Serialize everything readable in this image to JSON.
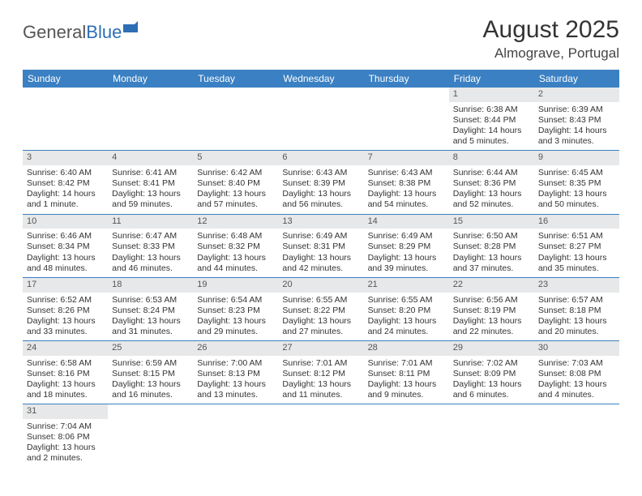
{
  "brand": {
    "part1": "General",
    "part2": "Blue"
  },
  "title": "August 2025",
  "location": "Almograve, Portugal",
  "colors": {
    "header_bg": "#3a80c3",
    "header_text": "#ffffff",
    "daynum_bg": "#e7e8e9",
    "border": "#3a80c3",
    "brand_blue": "#2d6fb5",
    "page_bg": "#ffffff",
    "text": "#333333"
  },
  "fonts": {
    "title_size_pt": 22,
    "location_size_pt": 13,
    "header_size_pt": 9,
    "body_size_pt": 8
  },
  "layout": {
    "columns": 7,
    "rows": 6
  },
  "weekdays": [
    "Sunday",
    "Monday",
    "Tuesday",
    "Wednesday",
    "Thursday",
    "Friday",
    "Saturday"
  ],
  "weeks": [
    [
      null,
      null,
      null,
      null,
      null,
      {
        "n": "1",
        "sr": "Sunrise: 6:38 AM",
        "ss": "Sunset: 8:44 PM",
        "dl1": "Daylight: 14 hours",
        "dl2": "and 5 minutes."
      },
      {
        "n": "2",
        "sr": "Sunrise: 6:39 AM",
        "ss": "Sunset: 8:43 PM",
        "dl1": "Daylight: 14 hours",
        "dl2": "and 3 minutes."
      }
    ],
    [
      {
        "n": "3",
        "sr": "Sunrise: 6:40 AM",
        "ss": "Sunset: 8:42 PM",
        "dl1": "Daylight: 14 hours",
        "dl2": "and 1 minute."
      },
      {
        "n": "4",
        "sr": "Sunrise: 6:41 AM",
        "ss": "Sunset: 8:41 PM",
        "dl1": "Daylight: 13 hours",
        "dl2": "and 59 minutes."
      },
      {
        "n": "5",
        "sr": "Sunrise: 6:42 AM",
        "ss": "Sunset: 8:40 PM",
        "dl1": "Daylight: 13 hours",
        "dl2": "and 57 minutes."
      },
      {
        "n": "6",
        "sr": "Sunrise: 6:43 AM",
        "ss": "Sunset: 8:39 PM",
        "dl1": "Daylight: 13 hours",
        "dl2": "and 56 minutes."
      },
      {
        "n": "7",
        "sr": "Sunrise: 6:43 AM",
        "ss": "Sunset: 8:38 PM",
        "dl1": "Daylight: 13 hours",
        "dl2": "and 54 minutes."
      },
      {
        "n": "8",
        "sr": "Sunrise: 6:44 AM",
        "ss": "Sunset: 8:36 PM",
        "dl1": "Daylight: 13 hours",
        "dl2": "and 52 minutes."
      },
      {
        "n": "9",
        "sr": "Sunrise: 6:45 AM",
        "ss": "Sunset: 8:35 PM",
        "dl1": "Daylight: 13 hours",
        "dl2": "and 50 minutes."
      }
    ],
    [
      {
        "n": "10",
        "sr": "Sunrise: 6:46 AM",
        "ss": "Sunset: 8:34 PM",
        "dl1": "Daylight: 13 hours",
        "dl2": "and 48 minutes."
      },
      {
        "n": "11",
        "sr": "Sunrise: 6:47 AM",
        "ss": "Sunset: 8:33 PM",
        "dl1": "Daylight: 13 hours",
        "dl2": "and 46 minutes."
      },
      {
        "n": "12",
        "sr": "Sunrise: 6:48 AM",
        "ss": "Sunset: 8:32 PM",
        "dl1": "Daylight: 13 hours",
        "dl2": "and 44 minutes."
      },
      {
        "n": "13",
        "sr": "Sunrise: 6:49 AM",
        "ss": "Sunset: 8:31 PM",
        "dl1": "Daylight: 13 hours",
        "dl2": "and 42 minutes."
      },
      {
        "n": "14",
        "sr": "Sunrise: 6:49 AM",
        "ss": "Sunset: 8:29 PM",
        "dl1": "Daylight: 13 hours",
        "dl2": "and 39 minutes."
      },
      {
        "n": "15",
        "sr": "Sunrise: 6:50 AM",
        "ss": "Sunset: 8:28 PM",
        "dl1": "Daylight: 13 hours",
        "dl2": "and 37 minutes."
      },
      {
        "n": "16",
        "sr": "Sunrise: 6:51 AM",
        "ss": "Sunset: 8:27 PM",
        "dl1": "Daylight: 13 hours",
        "dl2": "and 35 minutes."
      }
    ],
    [
      {
        "n": "17",
        "sr": "Sunrise: 6:52 AM",
        "ss": "Sunset: 8:26 PM",
        "dl1": "Daylight: 13 hours",
        "dl2": "and 33 minutes."
      },
      {
        "n": "18",
        "sr": "Sunrise: 6:53 AM",
        "ss": "Sunset: 8:24 PM",
        "dl1": "Daylight: 13 hours",
        "dl2": "and 31 minutes."
      },
      {
        "n": "19",
        "sr": "Sunrise: 6:54 AM",
        "ss": "Sunset: 8:23 PM",
        "dl1": "Daylight: 13 hours",
        "dl2": "and 29 minutes."
      },
      {
        "n": "20",
        "sr": "Sunrise: 6:55 AM",
        "ss": "Sunset: 8:22 PM",
        "dl1": "Daylight: 13 hours",
        "dl2": "and 27 minutes."
      },
      {
        "n": "21",
        "sr": "Sunrise: 6:55 AM",
        "ss": "Sunset: 8:20 PM",
        "dl1": "Daylight: 13 hours",
        "dl2": "and 24 minutes."
      },
      {
        "n": "22",
        "sr": "Sunrise: 6:56 AM",
        "ss": "Sunset: 8:19 PM",
        "dl1": "Daylight: 13 hours",
        "dl2": "and 22 minutes."
      },
      {
        "n": "23",
        "sr": "Sunrise: 6:57 AM",
        "ss": "Sunset: 8:18 PM",
        "dl1": "Daylight: 13 hours",
        "dl2": "and 20 minutes."
      }
    ],
    [
      {
        "n": "24",
        "sr": "Sunrise: 6:58 AM",
        "ss": "Sunset: 8:16 PM",
        "dl1": "Daylight: 13 hours",
        "dl2": "and 18 minutes."
      },
      {
        "n": "25",
        "sr": "Sunrise: 6:59 AM",
        "ss": "Sunset: 8:15 PM",
        "dl1": "Daylight: 13 hours",
        "dl2": "and 16 minutes."
      },
      {
        "n": "26",
        "sr": "Sunrise: 7:00 AM",
        "ss": "Sunset: 8:13 PM",
        "dl1": "Daylight: 13 hours",
        "dl2": "and 13 minutes."
      },
      {
        "n": "27",
        "sr": "Sunrise: 7:01 AM",
        "ss": "Sunset: 8:12 PM",
        "dl1": "Daylight: 13 hours",
        "dl2": "and 11 minutes."
      },
      {
        "n": "28",
        "sr": "Sunrise: 7:01 AM",
        "ss": "Sunset: 8:11 PM",
        "dl1": "Daylight: 13 hours",
        "dl2": "and 9 minutes."
      },
      {
        "n": "29",
        "sr": "Sunrise: 7:02 AM",
        "ss": "Sunset: 8:09 PM",
        "dl1": "Daylight: 13 hours",
        "dl2": "and 6 minutes."
      },
      {
        "n": "30",
        "sr": "Sunrise: 7:03 AM",
        "ss": "Sunset: 8:08 PM",
        "dl1": "Daylight: 13 hours",
        "dl2": "and 4 minutes."
      }
    ],
    [
      {
        "n": "31",
        "sr": "Sunrise: 7:04 AM",
        "ss": "Sunset: 8:06 PM",
        "dl1": "Daylight: 13 hours",
        "dl2": "and 2 minutes."
      },
      null,
      null,
      null,
      null,
      null,
      null
    ]
  ]
}
